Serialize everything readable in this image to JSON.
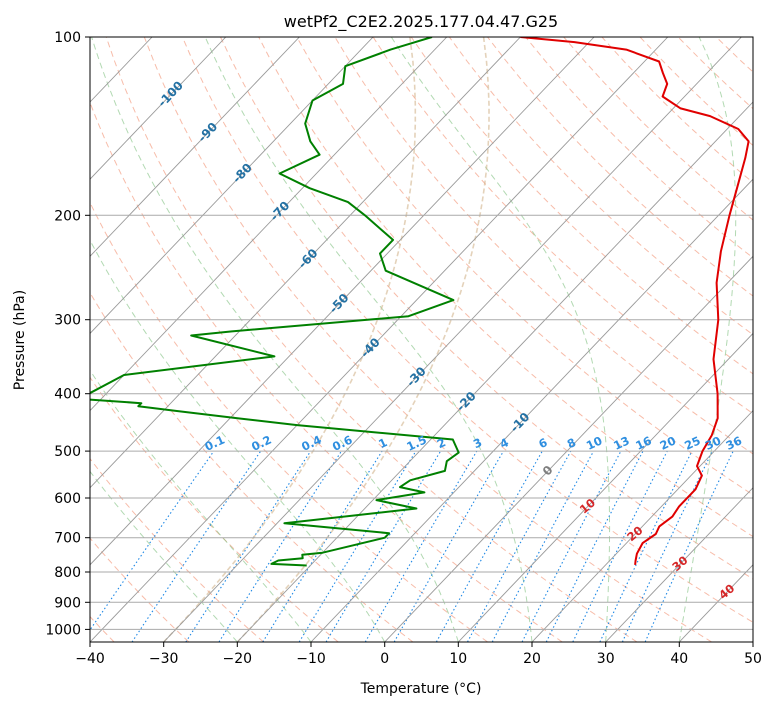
{
  "chart_data": {
    "type": "line",
    "subtype": "skew-t log-p diagram",
    "title": "wetPf2_C2E2.2025.177.04.47.G25",
    "xlabel": "Temperature (°C)",
    "ylabel": "Pressure (hPa)",
    "xlim": [
      -40,
      50
    ],
    "ylim": [
      1050,
      100
    ],
    "y_scale": "log",
    "grid": true,
    "xticks": [
      -40,
      -30,
      -20,
      -10,
      0,
      10,
      20,
      30,
      40,
      50
    ],
    "yticks": [
      1000,
      900,
      800,
      700,
      600,
      500,
      400,
      300,
      200,
      100
    ],
    "colors": {
      "temperature": "#e00000",
      "dewpoint": "#008000",
      "isotherm": "#9a9a9a",
      "dry_adiabat": "#f4a58c",
      "moist_adiabat": "#7fbf7f",
      "mixing_ratio": "#1e88e5",
      "frost_point": "#d2b48c"
    },
    "series": [
      {
        "role": "temperature",
        "x": [
          24.0,
          23.5,
          22.8,
          22.2,
          22.8,
          22.3,
          22.8,
          22.4,
          22.4,
          21.5,
          19.6,
          18.4,
          17.6,
          16.2,
          13.0,
          8.0,
          3.5,
          -1.5,
          -5.0,
          -8.5,
          -11.0,
          -13.8,
          -15.5,
          -18.5,
          -24.0,
          -29.0,
          -33.0,
          -34.0,
          -36.0,
          -38.0,
          -44.0,
          -52.0,
          -60.0
        ],
        "y": [
          778,
          765,
          745,
          715,
          690,
          670,
          645,
          620,
          580,
          550,
          530,
          500,
          470,
          440,
          400,
          350,
          300,
          260,
          230,
          200,
          180,
          160,
          150,
          143,
          136,
          132,
          126,
          120,
          115,
          110,
          105,
          102,
          100
        ]
      },
      {
        "role": "dewpoint",
        "x": [
          -20.5,
          -25.5,
          -25.0,
          -22.0,
          -22.5,
          -20.0,
          -13.5,
          -13.5,
          -29.0,
          -13.0,
          -19.5,
          -14.0,
          -18.0,
          -17.5,
          -14.0,
          -15.0,
          -14.5,
          -17.0,
          -40.0,
          -49.0,
          -58.0,
          -64.0,
          -64.0,
          -73.0,
          -70.0,
          -52.0,
          -66.0,
          -61.0,
          -39.0,
          -35.0,
          -48.0,
          -51.0,
          -51.0,
          -58.0,
          -62.0,
          -69.0,
          -75.0,
          -72.0,
          -75.0,
          -78.0,
          -80.0,
          -78.0,
          -80.0,
          -76.0,
          -72.0
        ],
        "y": [
          780,
          775,
          765,
          758,
          748,
          742,
          700,
          688,
          662,
          625,
          605,
          587,
          575,
          560,
          540,
          520,
          503,
          478,
          452,
          440,
          428,
          420,
          415,
          408,
          372,
          346,
          319,
          314,
          296,
          278,
          248,
          232,
          220,
          200,
          190,
          180,
          170,
          158,
          150,
          140,
          128,
          120,
          112,
          105,
          100
        ]
      }
    ],
    "isotherm_labels": [
      "-100",
      "-90",
      "-80",
      "-70",
      "-60",
      "-50",
      "-40",
      "-30",
      "-20",
      "-10"
    ],
    "isotherm_values": [
      -100,
      -90,
      -80,
      -70,
      -60,
      -50,
      -40,
      -30,
      -20,
      -10
    ],
    "freezing_label": "0",
    "mixing_ratio_labels": [
      "0.1",
      "0.2",
      "0.4",
      "0.6",
      "1",
      "1.5",
      "2",
      "3",
      "4",
      "6",
      "8",
      "10",
      "13",
      "16",
      "20",
      "25",
      "30",
      "36"
    ],
    "mixing_ratio_values": [
      0.1,
      0.2,
      0.4,
      0.6,
      1,
      1.5,
      2,
      3,
      4,
      6,
      8,
      10,
      13,
      16,
      20,
      25,
      30,
      36
    ],
    "warm_labels": [
      "10",
      "20",
      "30",
      "40"
    ],
    "warm_values": [
      10,
      20,
      30,
      40
    ]
  }
}
